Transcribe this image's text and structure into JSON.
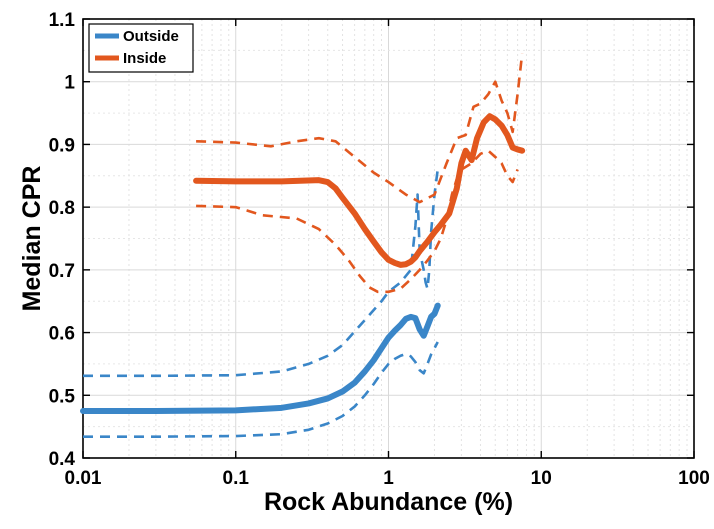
{
  "chart_data": {
    "type": "line",
    "title": "",
    "xlabel": "Rock Abundance (%)",
    "ylabel": "Median CPR",
    "xscale": "log",
    "xlim": [
      0.01,
      100
    ],
    "ylim": [
      0.4,
      1.1
    ],
    "xticks": [
      0.01,
      0.1,
      1,
      10,
      100
    ],
    "xtick_labels": [
      "0.01",
      "0.1",
      "1",
      "10",
      "100"
    ],
    "yticks": [
      0.4,
      0.5,
      0.6,
      0.7,
      0.8,
      0.9,
      1.0,
      1.1
    ],
    "ytick_labels": [
      "0.4",
      "0.5",
      "0.6",
      "0.7",
      "0.8",
      "0.9",
      "1",
      "1.1"
    ],
    "grid": true,
    "legend_position": "top-left",
    "series": [
      {
        "name": "Outside",
        "color": "#3a86c8",
        "style": "solid",
        "x": [
          0.01,
          0.03,
          0.1,
          0.2,
          0.3,
          0.4,
          0.5,
          0.6,
          0.7,
          0.8,
          0.9,
          1.0,
          1.1,
          1.2,
          1.3,
          1.4,
          1.5,
          1.6,
          1.7,
          1.8,
          1.9,
          2.0,
          2.1
        ],
        "y": [
          0.475,
          0.475,
          0.476,
          0.48,
          0.487,
          0.495,
          0.506,
          0.52,
          0.538,
          0.556,
          0.575,
          0.592,
          0.603,
          0.612,
          0.622,
          0.625,
          0.623,
          0.605,
          0.595,
          0.61,
          0.625,
          0.63,
          0.643
        ]
      },
      {
        "name": "Outside band upper",
        "color": "#3a86c8",
        "style": "dashed",
        "x": [
          0.01,
          0.03,
          0.1,
          0.2,
          0.3,
          0.4,
          0.5,
          0.7,
          0.9,
          1.0,
          1.2,
          1.4,
          1.5,
          1.55,
          1.6,
          1.7,
          1.75,
          1.8,
          1.85,
          1.9,
          2.0,
          2.1
        ],
        "y": [
          0.531,
          0.531,
          0.532,
          0.538,
          0.55,
          0.563,
          0.58,
          0.62,
          0.65,
          0.665,
          0.68,
          0.7,
          0.77,
          0.82,
          0.73,
          0.7,
          0.68,
          0.67,
          0.7,
          0.76,
          0.82,
          0.86
        ]
      },
      {
        "name": "Outside band lower",
        "color": "#3a86c8",
        "style": "dashed",
        "x": [
          0.01,
          0.03,
          0.1,
          0.2,
          0.3,
          0.4,
          0.5,
          0.6,
          0.7,
          0.8,
          0.9,
          1.0,
          1.1,
          1.2,
          1.3,
          1.4,
          1.5,
          1.6,
          1.7,
          1.8,
          1.9,
          2.0,
          2.1
        ],
        "y": [
          0.434,
          0.434,
          0.435,
          0.438,
          0.445,
          0.455,
          0.467,
          0.482,
          0.5,
          0.518,
          0.536,
          0.55,
          0.558,
          0.563,
          0.566,
          0.562,
          0.553,
          0.54,
          0.535,
          0.55,
          0.565,
          0.575,
          0.585
        ]
      },
      {
        "name": "Inside",
        "color": "#e2571e",
        "style": "solid",
        "x": [
          0.055,
          0.1,
          0.2,
          0.35,
          0.4,
          0.45,
          0.5,
          0.6,
          0.7,
          0.8,
          0.9,
          1.0,
          1.1,
          1.2,
          1.3,
          1.4,
          1.5,
          1.6,
          1.8,
          2.0,
          2.2,
          2.5,
          2.8,
          3.0,
          3.2,
          3.5,
          3.8,
          4.2,
          4.6,
          5.0,
          5.5,
          6.0,
          6.5,
          7.0,
          7.5
        ],
        "y": [
          0.842,
          0.841,
          0.841,
          0.843,
          0.84,
          0.83,
          0.815,
          0.79,
          0.765,
          0.745,
          0.728,
          0.716,
          0.711,
          0.708,
          0.709,
          0.713,
          0.72,
          0.73,
          0.745,
          0.76,
          0.772,
          0.79,
          0.83,
          0.87,
          0.89,
          0.875,
          0.91,
          0.935,
          0.945,
          0.94,
          0.93,
          0.915,
          0.895,
          0.892,
          0.89
        ]
      },
      {
        "name": "Inside band upper",
        "color": "#e2571e",
        "style": "dashed",
        "x": [
          0.055,
          0.1,
          0.17,
          0.25,
          0.35,
          0.45,
          0.6,
          0.8,
          1.0,
          1.3,
          1.6,
          2.0,
          2.4,
          2.8,
          3.2,
          3.6,
          4.0,
          4.5,
          5.0,
          5.5,
          6.0,
          6.5,
          7.0,
          7.5
        ],
        "y": [
          0.905,
          0.903,
          0.897,
          0.905,
          0.91,
          0.905,
          0.88,
          0.855,
          0.84,
          0.82,
          0.808,
          0.82,
          0.87,
          0.91,
          0.915,
          0.96,
          0.965,
          0.98,
          1.0,
          0.97,
          0.95,
          0.92,
          0.98,
          1.045
        ]
      },
      {
        "name": "Inside band lower",
        "color": "#e2571e",
        "style": "dashed",
        "x": [
          0.055,
          0.1,
          0.15,
          0.25,
          0.35,
          0.45,
          0.55,
          0.65,
          0.75,
          0.85,
          1.0,
          1.2,
          1.4,
          1.6,
          1.8,
          2.0,
          2.2,
          2.4,
          2.6,
          2.8,
          3.0,
          3.5,
          4.0,
          4.5,
          5.0,
          5.5,
          6.0,
          6.5,
          7.0
        ],
        "y": [
          0.802,
          0.8,
          0.787,
          0.782,
          0.765,
          0.74,
          0.715,
          0.69,
          0.672,
          0.665,
          0.665,
          0.67,
          0.685,
          0.7,
          0.715,
          0.73,
          0.75,
          0.78,
          0.82,
          0.845,
          0.86,
          0.87,
          0.885,
          0.89,
          0.88,
          0.87,
          0.85,
          0.84,
          0.86
        ]
      }
    ],
    "legend": [
      {
        "label": "Outside",
        "color": "#3a86c8"
      },
      {
        "label": "Inside",
        "color": "#e2571e"
      }
    ]
  }
}
